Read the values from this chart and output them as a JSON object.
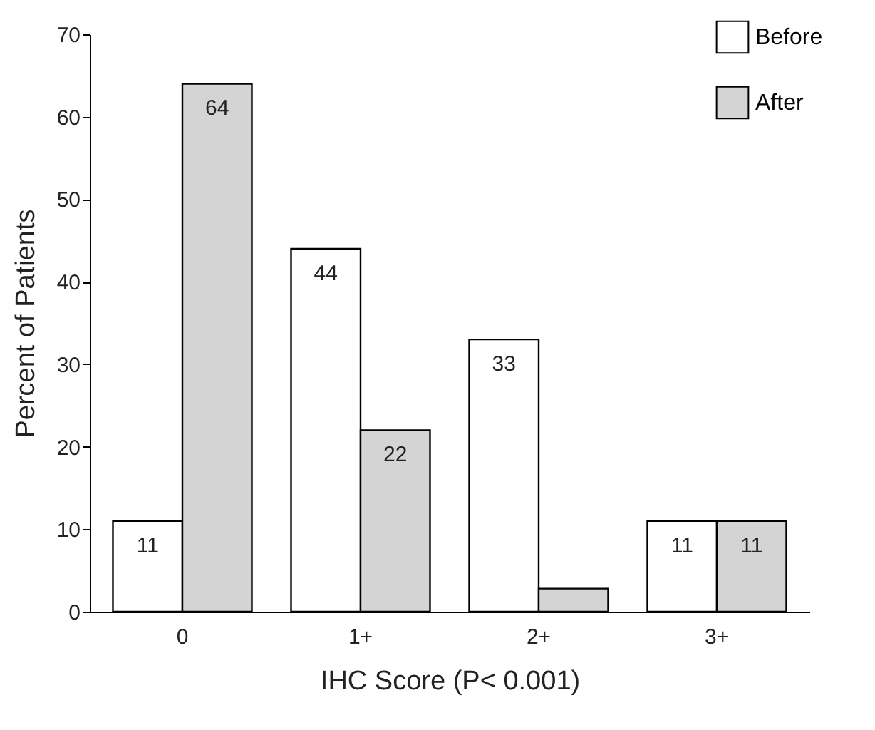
{
  "chart_data": {
    "type": "bar",
    "xlabel": "IHC Score (P< 0.001)",
    "ylabel": "Percent of Patients",
    "categories": [
      "0",
      "1+",
      "2+",
      "3+"
    ],
    "series": [
      {
        "name": "Before",
        "color": "#ffffff",
        "values": [
          11,
          44,
          33,
          11
        ],
        "value_labels": [
          "11",
          "44",
          "33",
          "11"
        ]
      },
      {
        "name": "After",
        "color": "#d4d4d4",
        "values": [
          64,
          22,
          2.8,
          11
        ],
        "value_labels": [
          "64",
          "22",
          null,
          "11"
        ]
      }
    ],
    "ylim": [
      0,
      70
    ],
    "yticks": [
      0,
      10,
      20,
      30,
      40,
      50,
      60,
      70
    ],
    "grid": false,
    "legend": "top right"
  }
}
